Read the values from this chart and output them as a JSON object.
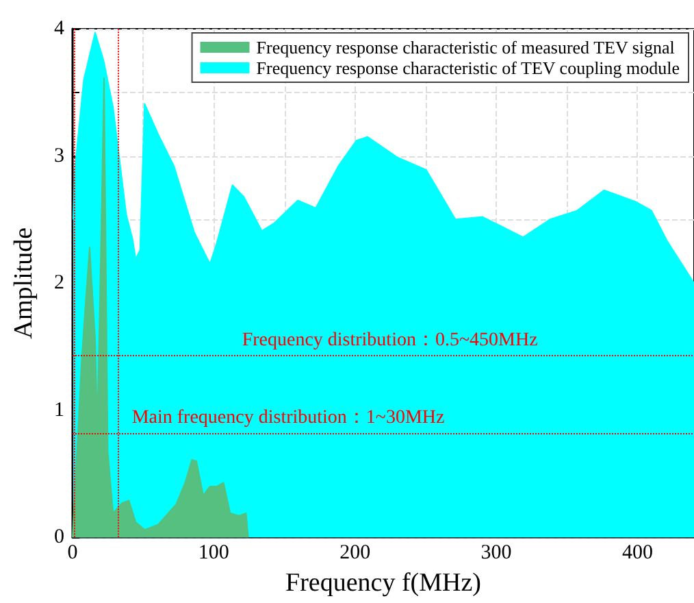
{
  "chart_data": {
    "type": "area",
    "xlabel": "Frequency f(MHz)",
    "ylabel": "Amplitude",
    "xlim": [
      0,
      440
    ],
    "ylim": [
      0,
      4
    ],
    "xticks": [
      0,
      {
        "value": 50,
        "label": null
      },
      100,
      {
        "value": 150,
        "label": null
      },
      200,
      {
        "value": 250,
        "label": null
      },
      300,
      {
        "value": 350,
        "label": null
      },
      400
    ],
    "yticks": [
      0,
      {
        "value": 0.5,
        "label": null
      },
      1,
      {
        "value": 1.5,
        "label": null
      },
      2,
      {
        "value": 2.5,
        "label": null
      },
      3,
      {
        "value": 3.5,
        "label": null
      },
      4
    ],
    "grid": true,
    "legend": "top right",
    "line_style": "solid",
    "marker": "none",
    "series": [
      {
        "name": "Frequency response characteristic of measured TEV signal",
        "color": "#55c080",
        "x": [
          0,
          3.2,
          6.4,
          9.6,
          12.1,
          16,
          17.5,
          20,
          22.3,
          24.9,
          28.7,
          35,
          39.9,
          44.7,
          51,
          60.6,
          73.4,
          79.7,
          84.5,
          87.7,
          92.5,
          97.3,
          102,
          106.9,
          111.6,
          118,
          122.8,
          124.4
        ],
        "values": [
          0,
          0.68,
          1.38,
          1.9,
          2.28,
          1.56,
          0.85,
          2.2,
          3.61,
          0.68,
          0.19,
          0.27,
          0.29,
          0.12,
          0.06,
          0.1,
          0.26,
          0.43,
          0.61,
          0.6,
          0.33,
          0.4,
          0.4,
          0.43,
          0.19,
          0.17,
          0.19,
          0
        ]
      },
      {
        "name": "Frequency response characteristic of TEV coupling module",
        "color": "#00ffff",
        "x": [
          0.5,
          1.6,
          8,
          16,
          22,
          28.7,
          38,
          42.4,
          44.7,
          47.8,
          51,
          60.6,
          71.8,
          86.1,
          97.3,
          102,
          113.2,
          121.2,
          134,
          142.6,
          159.5,
          172.2,
          188.2,
          200.9,
          208.9,
          229.7,
          250.4,
          271.1,
          290.3,
          303,
          319,
          338,
          357.3,
          376.4,
          398.7,
          409.9,
          421,
          435.4,
          440
        ],
        "values": [
          2.5,
          2.89,
          3.6,
          3.97,
          3.75,
          3.38,
          2.54,
          2.35,
          2.19,
          2.26,
          3.41,
          3.17,
          2.92,
          2.4,
          2.15,
          2.31,
          2.77,
          2.68,
          2.41,
          2.47,
          2.65,
          2.59,
          2.92,
          3.12,
          3.15,
          2.99,
          2.89,
          2.5,
          2.52,
          2.45,
          2.36,
          2.5,
          2.57,
          2.73,
          2.64,
          2.57,
          2.33,
          2.08,
          2.0
        ]
      }
    ],
    "ref_lines": [
      {
        "axis": "y",
        "value": 1.43,
        "color": "#ff0000",
        "line_style": "dotted"
      },
      {
        "axis": "y",
        "value": 0.82,
        "color": "#ff0000",
        "line_style": "dotted"
      },
      {
        "axis": "x",
        "value": 1,
        "color": "#ff0000",
        "line_style": "dotted"
      },
      {
        "axis": "x",
        "value": 32,
        "color": "#ff0000",
        "line_style": "dotted"
      }
    ],
    "annotations": [
      "Frequency distribution：0.5~450MHz",
      "Main frequency distribution：1~30MHz"
    ]
  }
}
